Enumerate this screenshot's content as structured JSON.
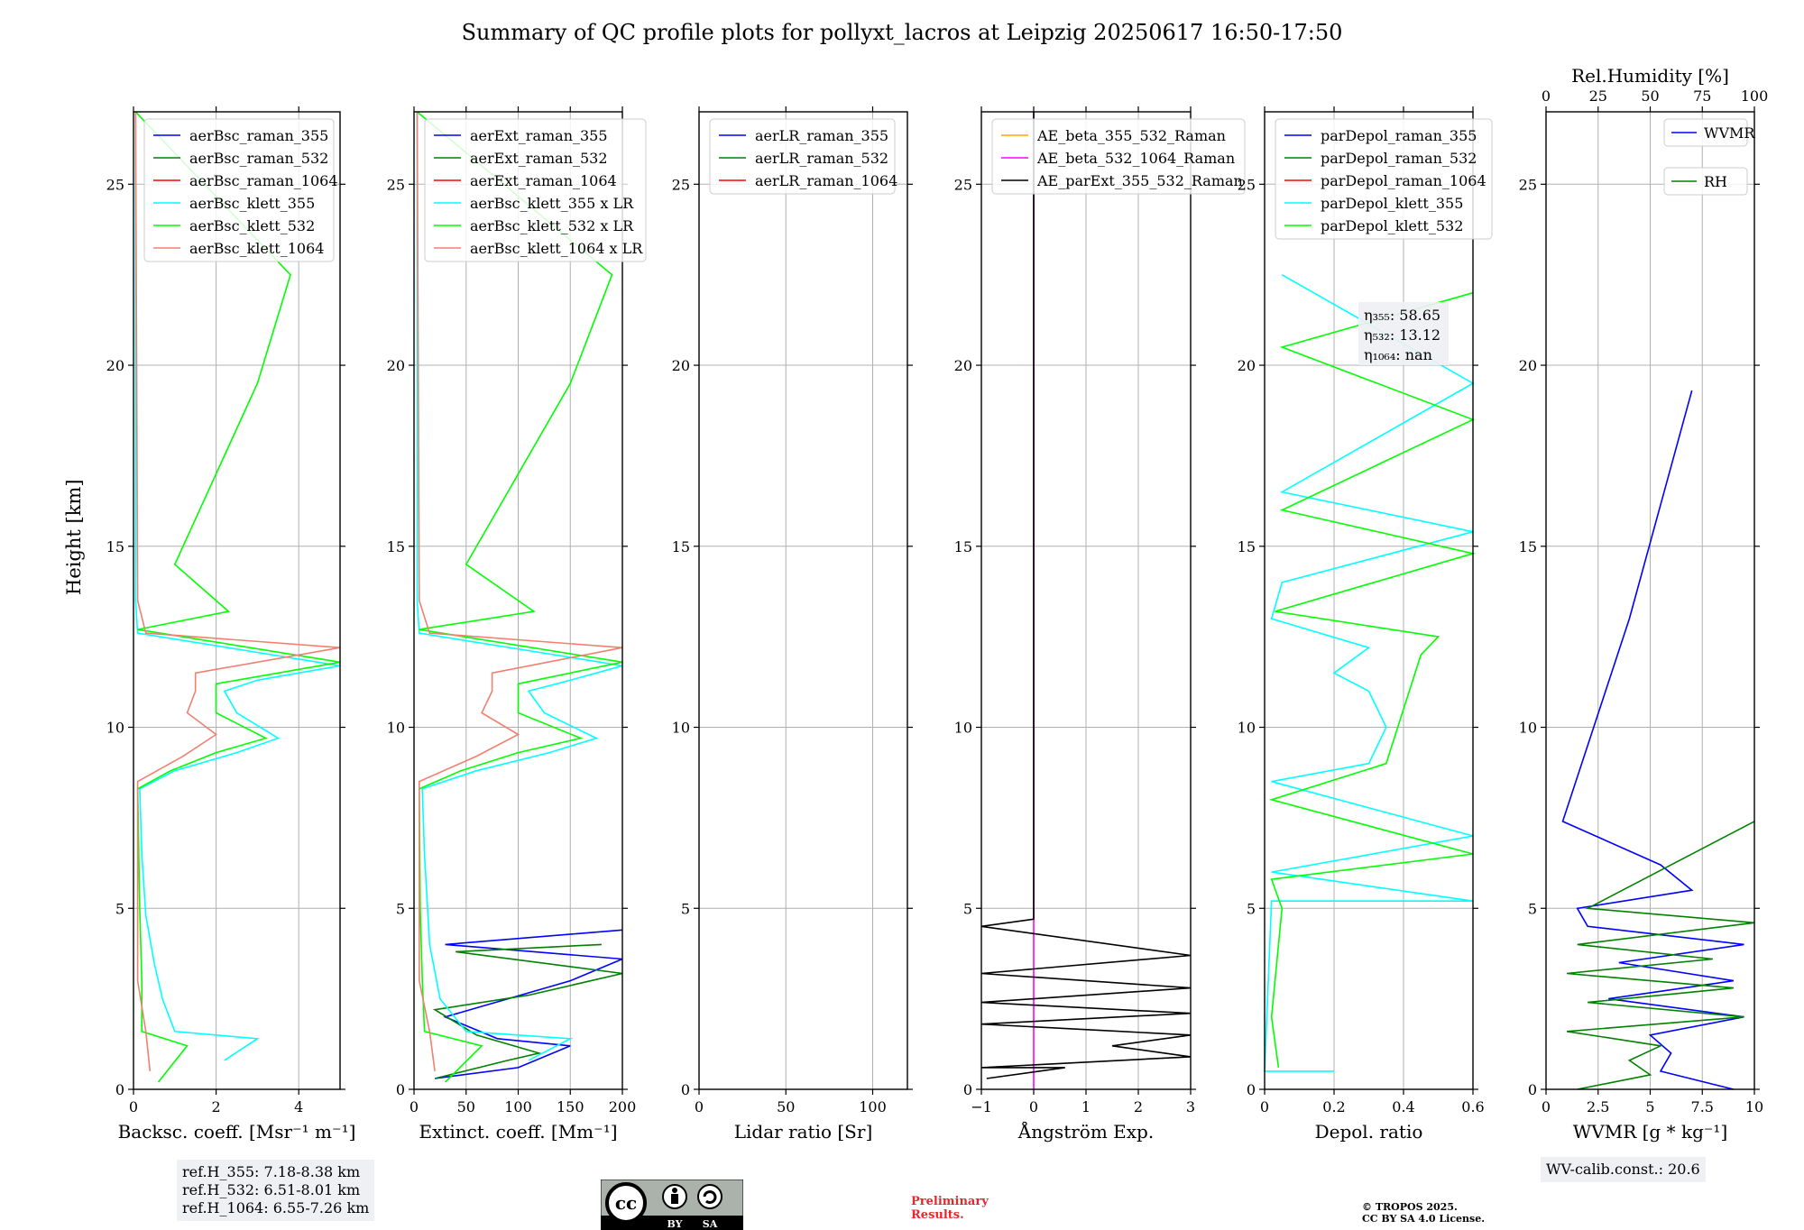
{
  "title": "Summary of QC profile plots for pollyxt_lacros at Leipzig 20250617 16:50-17:50",
  "ylabel": "Height [km]",
  "colors": {
    "blue": "#0000ff",
    "green": "#008000",
    "red": "#ff0000",
    "cyan": "#00ffff",
    "lime": "#00ff00",
    "salmon": "#f08070",
    "orange": "#ffa500",
    "magenta": "#ff00ff",
    "black": "#000000"
  },
  "chart_data": [
    {
      "type": "line",
      "xlabel": "Backsc. coeff. [Msr⁻¹ m⁻¹]",
      "xlim": [
        0,
        5
      ],
      "xticks": [
        0,
        2,
        4
      ],
      "ylim": [
        0,
        27
      ],
      "yticks": [
        0,
        5,
        10,
        15,
        20,
        25
      ],
      "grid": true,
      "legend": "top",
      "series": [
        {
          "name": "aerBsc_raman_355",
          "color": "blue",
          "values": []
        },
        {
          "name": "aerBsc_raman_532",
          "color": "green",
          "values": []
        },
        {
          "name": "aerBsc_raman_1064",
          "color": "red",
          "values": []
        },
        {
          "name": "aerBsc_klett_355",
          "color": "cyan",
          "values": [
            [
              2.2,
              0.8
            ],
            [
              3.0,
              1.4
            ],
            [
              1.0,
              1.6
            ],
            [
              0.7,
              2.5
            ],
            [
              0.5,
              3.5
            ],
            [
              0.3,
              4.8
            ],
            [
              0.2,
              6.5
            ],
            [
              0.15,
              8.3
            ],
            [
              1.0,
              8.8
            ],
            [
              2.5,
              9.3
            ],
            [
              3.5,
              9.7
            ],
            [
              2.5,
              10.4
            ],
            [
              2.2,
              11.0
            ],
            [
              3.0,
              11.3
            ],
            [
              5.0,
              11.7
            ],
            [
              0.1,
              12.6
            ],
            [
              0.05,
              13.5
            ],
            [
              0.05,
              27
            ]
          ]
        },
        {
          "name": "aerBsc_klett_532",
          "color": "lime",
          "values": [
            [
              0.6,
              0.2
            ],
            [
              1.3,
              1.2
            ],
            [
              0.2,
              1.6
            ],
            [
              0.2,
              3.0
            ],
            [
              0.15,
              5.0
            ],
            [
              0.1,
              8.3
            ],
            [
              0.9,
              8.8
            ],
            [
              2.0,
              9.3
            ],
            [
              3.2,
              9.7
            ],
            [
              2.0,
              10.4
            ],
            [
              2.0,
              11.2
            ],
            [
              5.0,
              11.8
            ],
            [
              0.1,
              12.7
            ],
            [
              2.3,
              13.2
            ],
            [
              1.0,
              14.5
            ],
            [
              1.8,
              16.5
            ],
            [
              3.0,
              19.5
            ],
            [
              3.8,
              22.5
            ],
            [
              0.05,
              27
            ]
          ]
        },
        {
          "name": "aerBsc_klett_1064",
          "color": "salmon",
          "values": [
            [
              0.4,
              0.5
            ],
            [
              0.3,
              1.6
            ],
            [
              0.1,
              3.0
            ],
            [
              0.1,
              8.5
            ],
            [
              1.2,
              9.2
            ],
            [
              2.0,
              9.8
            ],
            [
              1.3,
              10.4
            ],
            [
              1.5,
              11.0
            ],
            [
              1.5,
              11.5
            ],
            [
              5.0,
              12.2
            ],
            [
              0.3,
              12.6
            ],
            [
              0.1,
              13.5
            ],
            [
              0.05,
              27
            ]
          ]
        }
      ],
      "info": [
        "ref.H_355: 7.18-8.38 km",
        "ref.H_532: 6.51-8.01 km",
        "ref.H_1064: 6.55-7.26 km"
      ]
    },
    {
      "type": "line",
      "xlabel": "Extinct. coeff. [Mm⁻¹]",
      "xlim": [
        0,
        200
      ],
      "xticks": [
        0,
        50,
        100,
        150,
        200
      ],
      "ylim": [
        0,
        27
      ],
      "yticks": [
        0,
        5,
        10,
        15,
        20,
        25
      ],
      "grid": true,
      "legend": "top",
      "series": [
        {
          "name": "aerExt_raman_355",
          "color": "blue",
          "values": [
            [
              20,
              0.3
            ],
            [
              100,
              0.6
            ],
            [
              150,
              1.2
            ],
            [
              80,
              1.4
            ],
            [
              30,
              2.0
            ],
            [
              150,
              3.0
            ],
            [
              200,
              3.6
            ],
            [
              30,
              4.0
            ],
            [
              200,
              4.4
            ]
          ]
        },
        {
          "name": "aerExt_raman_532",
          "color": "green",
          "values": [
            [
              20,
              0.3
            ],
            [
              90,
              0.8
            ],
            [
              120,
              1.0
            ],
            [
              60,
              1.5
            ],
            [
              20,
              2.2
            ],
            [
              110,
              2.6
            ],
            [
              200,
              3.2
            ],
            [
              40,
              3.8
            ],
            [
              180,
              4.0
            ]
          ]
        },
        {
          "name": "aerExt_raman_1064",
          "color": "red",
          "values": []
        },
        {
          "name": "aerBsc_klett_355 x LR",
          "color": "cyan",
          "values": [
            [
              110,
              0.8
            ],
            [
              150,
              1.4
            ],
            [
              50,
              1.6
            ],
            [
              25,
              2.5
            ],
            [
              15,
              4.0
            ],
            [
              10,
              6.5
            ],
            [
              8,
              8.3
            ],
            [
              60,
              8.8
            ],
            [
              130,
              9.3
            ],
            [
              175,
              9.7
            ],
            [
              125,
              10.4
            ],
            [
              110,
              11.0
            ],
            [
              150,
              11.3
            ],
            [
              200,
              11.7
            ],
            [
              5,
              12.6
            ],
            [
              3,
              13.5
            ],
            [
              3,
              27
            ]
          ]
        },
        {
          "name": "aerBsc_klett_532 x LR",
          "color": "lime",
          "values": [
            [
              30,
              0.2
            ],
            [
              65,
              1.2
            ],
            [
              10,
              1.6
            ],
            [
              8,
              3.0
            ],
            [
              6,
              5.0
            ],
            [
              5,
              8.3
            ],
            [
              45,
              8.8
            ],
            [
              100,
              9.3
            ],
            [
              160,
              9.7
            ],
            [
              100,
              10.4
            ],
            [
              100,
              11.2
            ],
            [
              200,
              11.8
            ],
            [
              5,
              12.7
            ],
            [
              115,
              13.2
            ],
            [
              50,
              14.5
            ],
            [
              90,
              16.5
            ],
            [
              150,
              19.5
            ],
            [
              190,
              22.5
            ],
            [
              3,
              27
            ]
          ]
        },
        {
          "name": "aerBsc_klett_1064 x LR",
          "color": "salmon",
          "values": [
            [
              20,
              0.5
            ],
            [
              15,
              1.6
            ],
            [
              5,
              3.0
            ],
            [
              5,
              8.5
            ],
            [
              60,
              9.2
            ],
            [
              100,
              9.8
            ],
            [
              65,
              10.4
            ],
            [
              75,
              11.0
            ],
            [
              75,
              11.5
            ],
            [
              200,
              12.2
            ],
            [
              15,
              12.6
            ],
            [
              5,
              13.5
            ],
            [
              3,
              27
            ]
          ]
        }
      ]
    },
    {
      "type": "line",
      "xlabel": "Lidar ratio [Sr]",
      "xlim": [
        0,
        120
      ],
      "xticks": [
        0,
        50,
        100
      ],
      "ylim": [
        0,
        27
      ],
      "yticks": [
        0,
        5,
        10,
        15,
        20,
        25
      ],
      "grid": true,
      "legend": "top",
      "series": [
        {
          "name": "aerLR_raman_355",
          "color": "blue",
          "values": []
        },
        {
          "name": "aerLR_raman_532",
          "color": "green",
          "values": []
        },
        {
          "name": "aerLR_raman_1064",
          "color": "red",
          "values": []
        }
      ]
    },
    {
      "type": "line",
      "xlabel": "Ångström Exp.",
      "xlim": [
        -1,
        3
      ],
      "xticks": [
        -1,
        0,
        1,
        2,
        3
      ],
      "ylim": [
        0,
        27
      ],
      "yticks": [
        0,
        5,
        10,
        15,
        20,
        25
      ],
      "grid": true,
      "legend": "top",
      "series": [
        {
          "name": "AE_beta_355_532_Raman",
          "color": "orange",
          "values": []
        },
        {
          "name": "AE_beta_532_1064_Raman",
          "color": "magenta",
          "values": [
            [
              0,
              0
            ],
            [
              0,
              27
            ]
          ]
        },
        {
          "name": "AE_parExt_355_532_Raman",
          "color": "black",
          "values": [
            [
              -0.9,
              0.3
            ],
            [
              0.6,
              0.6
            ],
            [
              -1,
              0.6
            ],
            [
              3,
              0.9
            ],
            [
              1.5,
              1.2
            ],
            [
              3,
              1.5
            ],
            [
              -1,
              1.8
            ],
            [
              3,
              2.1
            ],
            [
              -1,
              2.4
            ],
            [
              3,
              2.8
            ],
            [
              -1,
              3.2
            ],
            [
              3,
              3.7
            ],
            [
              -1,
              4.5
            ],
            [
              0,
              4.7
            ],
            [
              0,
              27
            ]
          ]
        }
      ]
    },
    {
      "type": "line",
      "xlabel": "Depol. ratio",
      "xlim": [
        0,
        0.6
      ],
      "xticks": [
        0.0,
        0.2,
        0.4,
        0.6
      ],
      "ylim": [
        0,
        27
      ],
      "yticks": [
        0,
        5,
        10,
        15,
        20,
        25
      ],
      "grid": true,
      "legend": "top",
      "series": [
        {
          "name": "parDepol_raman_355",
          "color": "blue",
          "values": []
        },
        {
          "name": "parDepol_raman_532",
          "color": "green",
          "values": []
        },
        {
          "name": "parDepol_raman_1064",
          "color": "red",
          "values": []
        },
        {
          "name": "parDepol_klett_355",
          "color": "cyan",
          "values": [
            [
              0.2,
              0.5
            ],
            [
              0,
              0.5
            ],
            [
              0.02,
              5.2
            ],
            [
              0.6,
              5.2
            ],
            [
              0.02,
              6.0
            ],
            [
              0.6,
              7.0
            ],
            [
              0.02,
              8.5
            ],
            [
              0.3,
              9.0
            ],
            [
              0.35,
              10.0
            ],
            [
              0.3,
              11.0
            ],
            [
              0.2,
              11.5
            ],
            [
              0.3,
              12.2
            ],
            [
              0.02,
              13.0
            ],
            [
              0.05,
              14.0
            ],
            [
              0.6,
              15.4
            ],
            [
              0.05,
              16.5
            ],
            [
              0.6,
              19.5
            ],
            [
              0.05,
              22.5
            ]
          ]
        },
        {
          "name": "parDepol_klett_532",
          "color": "lime",
          "values": [
            [
              0.04,
              0.6
            ],
            [
              0.02,
              2.0
            ],
            [
              0.05,
              5.0
            ],
            [
              0.02,
              5.8
            ],
            [
              0.6,
              6.5
            ],
            [
              0.02,
              8.0
            ],
            [
              0.35,
              9.0
            ],
            [
              0.4,
              10.5
            ],
            [
              0.45,
              12.0
            ],
            [
              0.5,
              12.5
            ],
            [
              0.03,
              13.2
            ],
            [
              0.6,
              14.8
            ],
            [
              0.05,
              16.0
            ],
            [
              0.6,
              18.5
            ],
            [
              0.05,
              20.5
            ],
            [
              0.6,
              22.0
            ]
          ]
        }
      ],
      "annotations": [
        "η₃₅₅: 58.65",
        "η₅₃₂: 13.12",
        "η₁₀₆₄: nan"
      ]
    },
    {
      "type": "line",
      "xlabel": "WVMR [g * kg⁻¹]",
      "xlim": [
        0,
        10
      ],
      "xticks": [
        0.0,
        2.5,
        5.0,
        7.5,
        10.0
      ],
      "ylim": [
        0,
        27
      ],
      "yticks": [
        0,
        5,
        10,
        15,
        20,
        25
      ],
      "x2label": "Rel.Humidity [%]",
      "x2lim": [
        0,
        100
      ],
      "x2ticks": [
        0,
        25,
        50,
        75,
        100
      ],
      "grid": true,
      "legend": "top-right",
      "series": [
        {
          "name": "WVMR",
          "color": "blue",
          "values": [
            [
              9.0,
              0.0
            ],
            [
              5.5,
              0.5
            ],
            [
              6.0,
              1.0
            ],
            [
              5.0,
              1.5
            ],
            [
              9.5,
              2.0
            ],
            [
              3.0,
              2.5
            ],
            [
              9.0,
              3.0
            ],
            [
              3.5,
              3.5
            ],
            [
              9.5,
              4.0
            ],
            [
              2.0,
              4.5
            ],
            [
              1.5,
              5.0
            ],
            [
              7.0,
              5.5
            ],
            [
              5.5,
              6.2
            ],
            [
              0.8,
              7.4
            ],
            [
              4.0,
              13.0
            ],
            [
              7.0,
              19.3
            ]
          ]
        },
        {
          "name": "RH",
          "color": "green",
          "values": [
            [
              1.5,
              0.0
            ],
            [
              5.0,
              0.4
            ],
            [
              4.0,
              0.8
            ],
            [
              5.5,
              1.2
            ],
            [
              1.0,
              1.6
            ],
            [
              9.5,
              2.0
            ],
            [
              2.0,
              2.4
            ],
            [
              9.0,
              2.8
            ],
            [
              1.0,
              3.2
            ],
            [
              8.0,
              3.6
            ],
            [
              1.5,
              4.0
            ],
            [
              10.0,
              4.6
            ],
            [
              2.0,
              5.0
            ],
            [
              10.0,
              7.4
            ]
          ]
        }
      ],
      "info": [
        "WV-calib.const.: 20.6"
      ]
    }
  ],
  "footer": {
    "preliminary": [
      "Preliminary",
      "Results."
    ],
    "copyright": [
      "© TROPOS 2025.",
      "CC BY SA 4.0 License."
    ],
    "cc_by": "BY",
    "cc_sa": "SA",
    "cc_mark": "cc"
  }
}
